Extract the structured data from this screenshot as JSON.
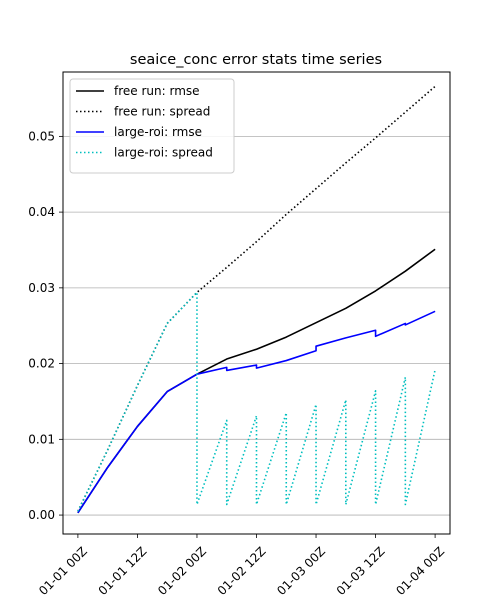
{
  "chart_data": {
    "type": "line",
    "title": "seaice_conc error stats time series",
    "xlabel": "",
    "ylabel": "",
    "x_ticks": [
      "01-01 00Z",
      "01-01 12Z",
      "01-02 00Z",
      "01-02 12Z",
      "01-03 00Z",
      "01-03 12Z",
      "01-04 00Z"
    ],
    "x_unit": "hours since 01-01 00Z",
    "xlim": [
      -3,
      75
    ],
    "ylim": [
      -0.0025,
      0.0585
    ],
    "y_ticks": [
      "0.00",
      "0.01",
      "0.02",
      "0.03",
      "0.04",
      "0.05"
    ],
    "grid": "horizontal",
    "legend_position": "top-left",
    "series": [
      {
        "name": "free run: rmse",
        "color": "#000000",
        "style": "solid",
        "x": [
          0,
          6,
          12,
          18,
          24,
          30,
          36,
          42,
          48,
          54,
          60,
          66,
          72
        ],
        "y": [
          0.0003,
          0.0063,
          0.0117,
          0.0163,
          0.0186,
          0.0206,
          0.0219,
          0.0235,
          0.0254,
          0.0273,
          0.0296,
          0.0322,
          0.0351
        ]
      },
      {
        "name": "free run: spread",
        "color": "#000000",
        "style": "dotted",
        "x": [
          0,
          6,
          12,
          18,
          24,
          30,
          36,
          42,
          48,
          54,
          60,
          66,
          72
        ],
        "y": [
          0.0005,
          0.0086,
          0.0171,
          0.0253,
          0.0294,
          0.0327,
          0.0361,
          0.0397,
          0.0431,
          0.0465,
          0.0498,
          0.0532,
          0.0566
        ]
      },
      {
        "name": "large-roi: rmse",
        "color": "#0000ff",
        "style": "solid",
        "x": [
          0,
          6,
          12,
          18,
          24,
          30,
          30,
          36,
          36,
          42,
          48,
          48,
          54,
          60,
          60,
          66,
          66,
          72
        ],
        "y": [
          0.0003,
          0.0063,
          0.0117,
          0.0163,
          0.0186,
          0.0195,
          0.0191,
          0.0198,
          0.0194,
          0.0204,
          0.0217,
          0.0223,
          0.0234,
          0.0244,
          0.0236,
          0.0253,
          0.0251,
          0.0269
        ]
      },
      {
        "name": "large-roi: spread",
        "color": "#00bfbf",
        "style": "dotted",
        "x": [
          0,
          6,
          12,
          18,
          24,
          24,
          30,
          30,
          36,
          36,
          42,
          42,
          48,
          48,
          54,
          54,
          60,
          60,
          66,
          66,
          72
        ],
        "y": [
          0.0005,
          0.0086,
          0.0171,
          0.0253,
          0.0294,
          0.0014,
          0.0125,
          0.0014,
          0.0131,
          0.0014,
          0.0135,
          0.0014,
          0.0146,
          0.0014,
          0.0152,
          0.0014,
          0.0164,
          0.0014,
          0.0182,
          0.0014,
          0.0192
        ]
      }
    ]
  }
}
